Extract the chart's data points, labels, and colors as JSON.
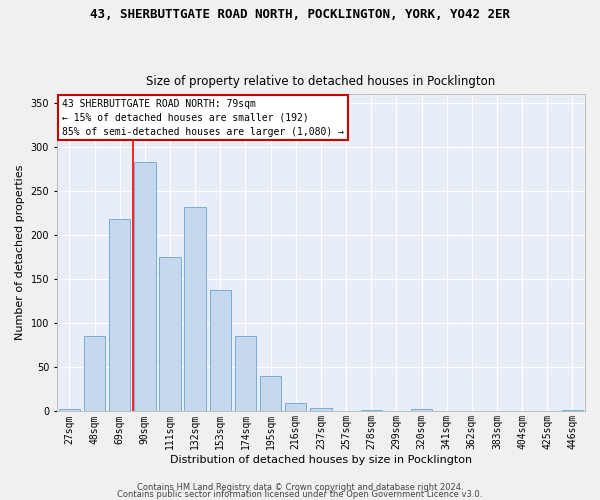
{
  "title_line1": "43, SHERBUTTGATE ROAD NORTH, POCKLINGTON, YORK, YO42 2ER",
  "title_line2": "Size of property relative to detached houses in Pocklington",
  "xlabel": "Distribution of detached houses by size in Pocklington",
  "ylabel": "Number of detached properties",
  "categories": [
    "27sqm",
    "48sqm",
    "69sqm",
    "90sqm",
    "111sqm",
    "132sqm",
    "153sqm",
    "174sqm",
    "195sqm",
    "216sqm",
    "237sqm",
    "257sqm",
    "278sqm",
    "299sqm",
    "320sqm",
    "341sqm",
    "362sqm",
    "383sqm",
    "404sqm",
    "425sqm",
    "446sqm"
  ],
  "values": [
    3,
    86,
    218,
    283,
    175,
    232,
    138,
    85,
    40,
    10,
    4,
    0,
    2,
    0,
    3,
    0,
    0,
    1,
    0,
    0,
    2
  ],
  "bar_color": "#c5d8ed",
  "bar_edge_color": "#7aadd4",
  "red_line_x": 2.52,
  "annotation_text": "43 SHERBUTTGATE ROAD NORTH: 79sqm\n← 15% of detached houses are smaller (192)\n85% of semi-detached houses are larger (1,080) →",
  "annotation_box_color": "#ffffff",
  "annotation_border_color": "#cc0000",
  "ylim": [
    0,
    360
  ],
  "yticks": [
    0,
    50,
    100,
    150,
    200,
    250,
    300,
    350
  ],
  "background_color": "#e8eef8",
  "fig_background_color": "#f0f0f0",
  "grid_color": "#ffffff",
  "footer_line1": "Contains HM Land Registry data © Crown copyright and database right 2024.",
  "footer_line2": "Contains public sector information licensed under the Open Government Licence v3.0.",
  "title_fontsize": 9,
  "subtitle_fontsize": 8.5,
  "xlabel_fontsize": 8,
  "ylabel_fontsize": 8,
  "tick_fontsize": 7,
  "annotation_fontsize": 7,
  "footer_fontsize": 6
}
